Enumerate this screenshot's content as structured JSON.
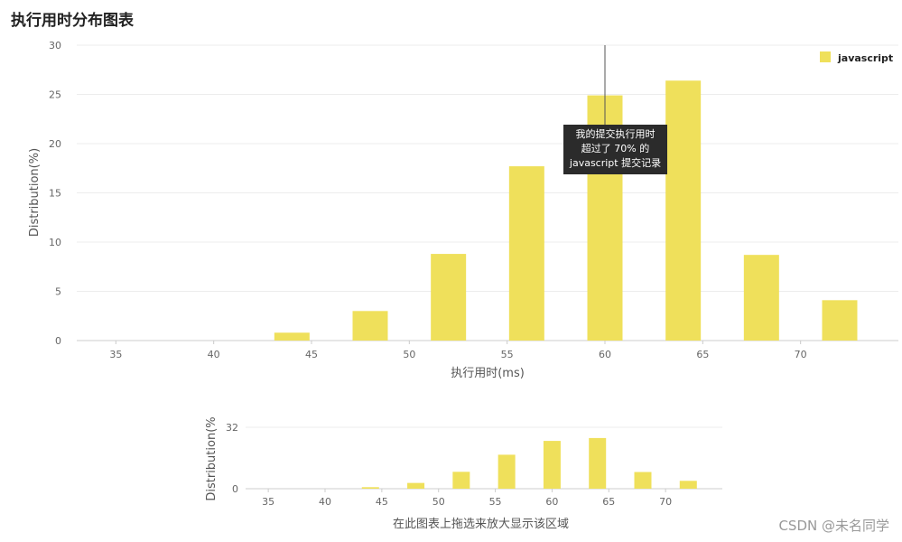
{
  "page": {
    "title": "执行用时分布图表",
    "watermark": "CSDN @未名同学"
  },
  "tooltip": {
    "line1": "我的提交执行用时",
    "line2": "超过了 70% 的",
    "line3": "javascript 提交记录"
  },
  "colors": {
    "bar": "#efe05b",
    "grid": "#ececec",
    "axis": "#cccccc",
    "cursor": "#555555"
  },
  "chart_data": [
    {
      "type": "bar",
      "title": "执行用时分布图表",
      "xlabel": "执行用时(ms)",
      "ylabel": "Distribution(%)",
      "xlim": [
        33,
        75
      ],
      "ylim": [
        0,
        30
      ],
      "xticks": [
        "35",
        "40",
        "45",
        "50",
        "55",
        "60",
        "65",
        "70"
      ],
      "yticks": [
        "0",
        "5",
        "10",
        "15",
        "20",
        "25",
        "30"
      ],
      "grid": true,
      "legend": "top-right",
      "cursor_x": 60,
      "series": [
        {
          "name": "javascript",
          "x": [
            44,
            48,
            52,
            56,
            60,
            64,
            68,
            72
          ],
          "values": [
            0.8,
            3.0,
            8.8,
            17.7,
            24.9,
            26.4,
            8.7,
            4.1
          ]
        }
      ]
    },
    {
      "type": "bar",
      "xlabel": "在此图表上拖选来放大显示该区域",
      "ylabel": "Distribution(%",
      "xlim": [
        33,
        75
      ],
      "ylim": [
        0,
        32
      ],
      "xticks": [
        "35",
        "40",
        "45",
        "50",
        "55",
        "60",
        "65",
        "70"
      ],
      "yticks": [
        "0",
        "32"
      ],
      "series": [
        {
          "x": [
            44,
            48,
            52,
            56,
            60,
            64,
            68,
            72
          ],
          "values": [
            0.8,
            3.0,
            8.8,
            17.7,
            24.9,
            26.4,
            8.7,
            4.1
          ]
        }
      ]
    }
  ]
}
